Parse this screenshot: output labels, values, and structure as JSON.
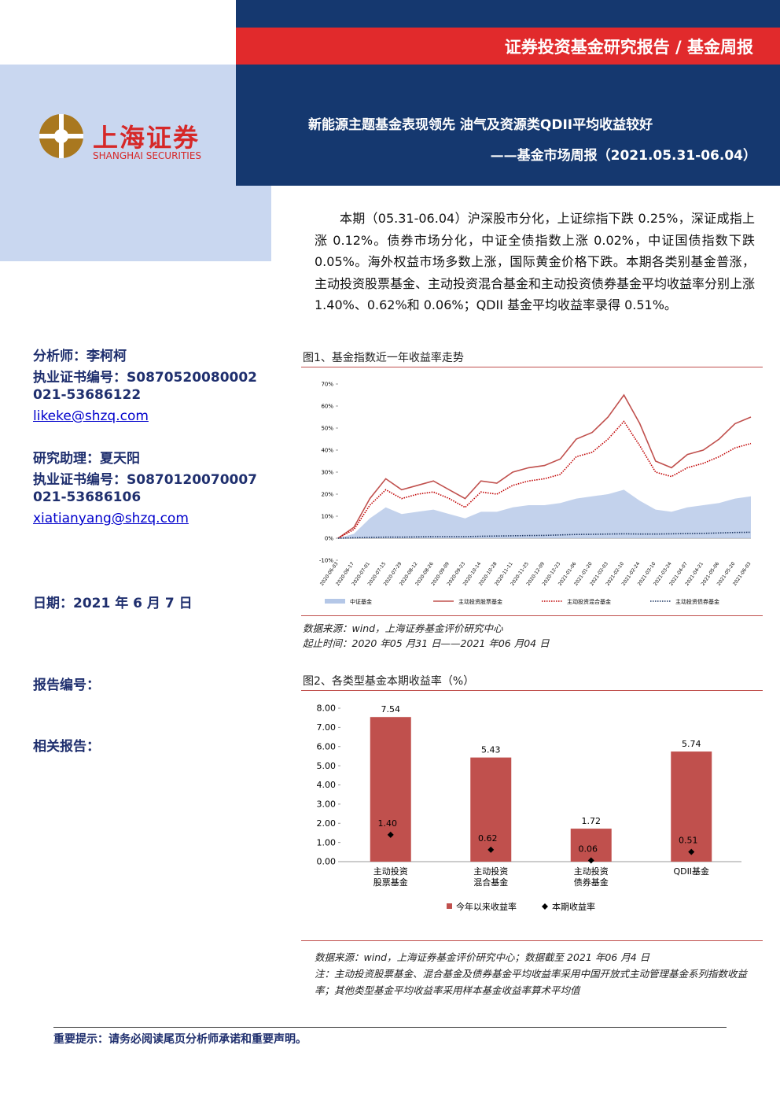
{
  "header": {
    "band_title": "证券投资基金研究报告 / 基金周报",
    "logo_cn": "上海证券",
    "logo_en": "SHANGHAI SECURITIES",
    "title": "新能源主题基金表现领先 油气及资源类QDII平均收益较好",
    "subtitle": "——基金市场周报（2021.05.31-06.04）"
  },
  "summary": "本期（05.31-06.04）沪深股市分化，上证综指下跌 0.25%，深证成指上涨 0.12%。债券市场分化，中证全债指数上涨 0.02%，中证国债指数下跌 0.05%。海外权益市场多数上涨，国际黄金价格下跌。本期各类别基金普涨，主动投资股票基金、主动投资混合基金和主动投资债券基金平均收益率分别上涨 1.40%、0.62%和 0.06%；QDII 基金平均收益率录得 0.51%。",
  "sidebar": {
    "analyst": "分析师：李柯柯",
    "analyst_cert": "执业证书编号：S0870520080002",
    "analyst_phone": "021-53686122",
    "analyst_email": "likeke@shzq.com",
    "assistant": "研究助理：夏天阳",
    "assistant_cert": "执业证书编号：S0870120070007",
    "assistant_phone": "021-53686106",
    "assistant_email": "xiatianyang@shzq.com",
    "date": "日期：2021 年 6 月 7 日",
    "report_no": "报告编号：",
    "related": "相关报告："
  },
  "chart_data": [
    {
      "type": "line",
      "title": "图1、基金指数近一年收益率走势",
      "categories": [
        "2020-06-03",
        "2020-06-17",
        "2020-07-01",
        "2020-07-15",
        "2020-07-29",
        "2020-08-12",
        "2020-08-26",
        "2020-09-09",
        "2020-09-23",
        "2020-10-14",
        "2020-10-28",
        "2020-11-11",
        "2020-11-25",
        "2020-12-09",
        "2020-12-23",
        "2021-01-06",
        "2021-01-20",
        "2021-02-03",
        "2021-02-10",
        "2021-02-24",
        "2021-03-10",
        "2021-03-24",
        "2021-04-07",
        "2021-04-21",
        "2021-05-06",
        "2021-05-20",
        "2021-06-03"
      ],
      "series": [
        {
          "name": "中证基金",
          "color": "#b4c7e7",
          "style": "area",
          "values": [
            0,
            2,
            9,
            14,
            11,
            12,
            13,
            11,
            9,
            12,
            12,
            14,
            15,
            15,
            16,
            18,
            19,
            20,
            22,
            17,
            13,
            12,
            14,
            15,
            16,
            18,
            19
          ]
        },
        {
          "name": "主动投资股票基金",
          "color": "#c0504d",
          "style": "solid",
          "values": [
            0,
            5,
            18,
            27,
            22,
            24,
            26,
            22,
            18,
            26,
            25,
            30,
            32,
            33,
            36,
            45,
            48,
            55,
            65,
            52,
            35,
            32,
            38,
            40,
            45,
            52,
            55
          ]
        },
        {
          "name": "主动投资混合基金",
          "color": "#c00000",
          "style": "dotted",
          "values": [
            0,
            4,
            15,
            22,
            18,
            20,
            21,
            18,
            14,
            21,
            20,
            24,
            26,
            27,
            29,
            37,
            39,
            45,
            53,
            42,
            30,
            28,
            32,
            34,
            37,
            41,
            43
          ]
        },
        {
          "name": "主动投资债券基金",
          "color": "#1f3864",
          "style": "dotted",
          "values": [
            0,
            0.2,
            0.4,
            0.5,
            0.5,
            0.6,
            0.7,
            0.7,
            0.7,
            0.9,
            1,
            1.1,
            1.2,
            1.3,
            1.5,
            1.7,
            1.8,
            1.9,
            2,
            1.9,
            1.9,
            2,
            2.1,
            2.2,
            2.4,
            2.6,
            2.7
          ]
        }
      ],
      "ylim": [
        -10,
        70
      ],
      "yticks": [
        {
          "value": -10,
          "label": "-10%"
        },
        {
          "value": 0,
          "label": "0%"
        },
        {
          "value": 10,
          "label": "10%"
        },
        {
          "value": 20,
          "label": "20%"
        },
        {
          "value": 30,
          "label": "30%"
        },
        {
          "value": 40,
          "label": "40%"
        },
        {
          "value": 50,
          "label": "50%"
        },
        {
          "value": 60,
          "label": "60%"
        },
        {
          "value": 70,
          "label": "70%"
        }
      ],
      "grid": false,
      "notes": [
        "数据来源：wind，上海证券基金评价研究中心",
        "起止时间：2020 年05 月31 日——2021 年06 月04 日"
      ]
    },
    {
      "type": "bar",
      "title": "图2、各类型基金本期收益率（%）",
      "categories": [
        "主动投资股票基金",
        "主动投资混合基金",
        "主动投资债券基金",
        "QDII基金"
      ],
      "series": [
        {
          "name": "今年以来收益率",
          "color": "#c0504d",
          "marker": "bar",
          "values": [
            7.54,
            5.43,
            1.72,
            5.74
          ]
        },
        {
          "name": "本期收益率",
          "color": "#000000",
          "marker": "diamond",
          "values": [
            1.4,
            0.62,
            0.06,
            0.51
          ],
          "value_labels": [
            "1.40",
            "0.62",
            "0.06",
            "0.51"
          ]
        }
      ],
      "ylim": [
        0,
        8
      ],
      "yticks": [
        {
          "value": 0,
          "label": "0.00"
        },
        {
          "value": 1,
          "label": "1.00"
        },
        {
          "value": 2,
          "label": "2.00"
        },
        {
          "value": 3,
          "label": "3.00"
        },
        {
          "value": 4,
          "label": "4.00"
        },
        {
          "value": 5,
          "label": "5.00"
        },
        {
          "value": 6,
          "label": "6.00"
        },
        {
          "value": 7,
          "label": "7.00"
        },
        {
          "value": 8,
          "label": "8.00"
        }
      ],
      "grid": false,
      "notes": [
        "数据来源：wind，上海证券基金评价研究中心；数据截至 2021 年06 月4 日",
        "注：主动投资股票基金、混合基金及债券基金平均收益率采用中国开放式主动管理基金系列指数收益率；其他类型基金平均收益率采用样本基金收益率算术平均值"
      ]
    }
  ],
  "footer": "重要提示：请务必阅读尾页分析师承诺和重要声明。"
}
